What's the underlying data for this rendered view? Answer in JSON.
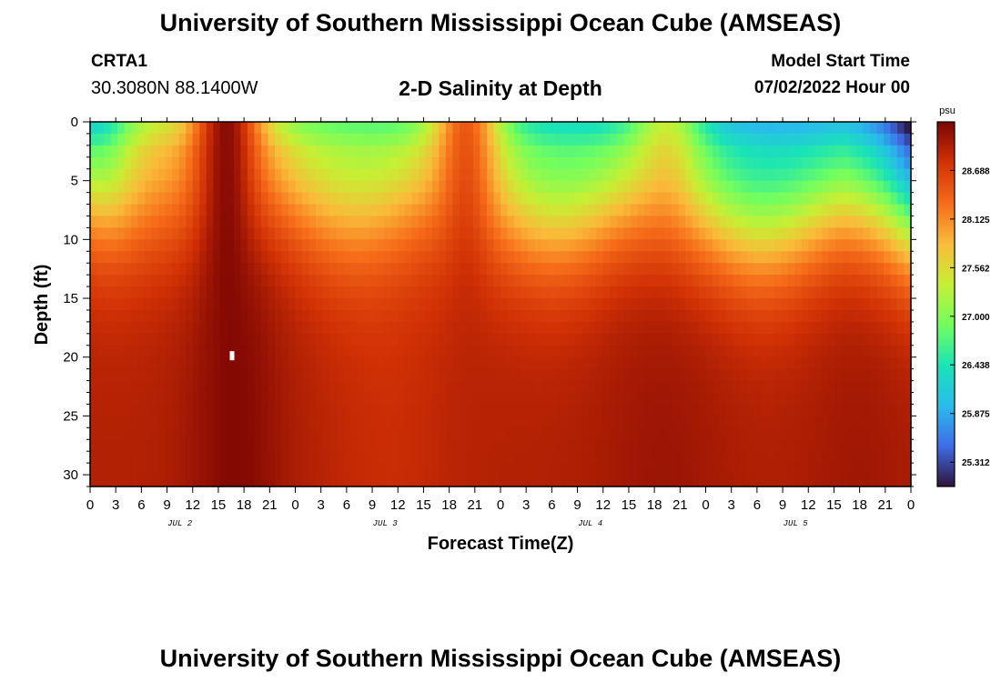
{
  "header": {
    "title": "University of Southern Mississippi Ocean Cube (AMSEAS)",
    "station": "CRTA1",
    "coords": "30.3080N  88.1400W",
    "subtitle": "2-D Salinity at Depth",
    "start_label": "Model Start Time",
    "start_value": "07/02/2022 Hour 00"
  },
  "footer": {
    "title": "University of Southern Mississippi Ocean Cube (AMSEAS)"
  },
  "chart_data": {
    "type": "heatmap",
    "title": "2-D Salinity at Depth",
    "xlabel": "Forecast Time(Z)",
    "ylabel": "Depth (ft)",
    "x_range_hours": [
      0,
      96
    ],
    "x_tick_labels": [
      "0",
      "3",
      "6",
      "9",
      "12",
      "15",
      "18",
      "21",
      "0",
      "3",
      "6",
      "9",
      "12",
      "15",
      "18",
      "21",
      "0",
      "3",
      "6",
      "9",
      "12",
      "15",
      "18",
      "21",
      "0",
      "3",
      "6",
      "9",
      "12",
      "15",
      "18",
      "21",
      "0"
    ],
    "day_labels": [
      "JUL 2",
      "JUL 3",
      "JUL 4",
      "JUL 5"
    ],
    "y_range": [
      0,
      31
    ],
    "y_ticks": [
      0,
      5,
      10,
      15,
      20,
      25,
      30
    ],
    "colorbar": {
      "unit": "psu",
      "min": 25.03,
      "max": 29.25,
      "ticks": [
        "28.688",
        "28.125",
        "27.562",
        "27.000",
        "26.438",
        "25.875",
        "25.312"
      ],
      "colors": [
        "#30123b",
        "#3e6de8",
        "#28bceb",
        "#1ae4b6",
        "#72fe5e",
        "#c7ef34",
        "#faba39",
        "#f66b19",
        "#d23105",
        "#7a0403"
      ]
    },
    "salinity_summary": {
      "surface_min_psu": 25.3,
      "bottom_max_psu": 29.2,
      "high_salinity_intrusions_hour": [
        16,
        43,
        67,
        90
      ],
      "freshest_period": "end of JUL 5 near surface"
    }
  }
}
